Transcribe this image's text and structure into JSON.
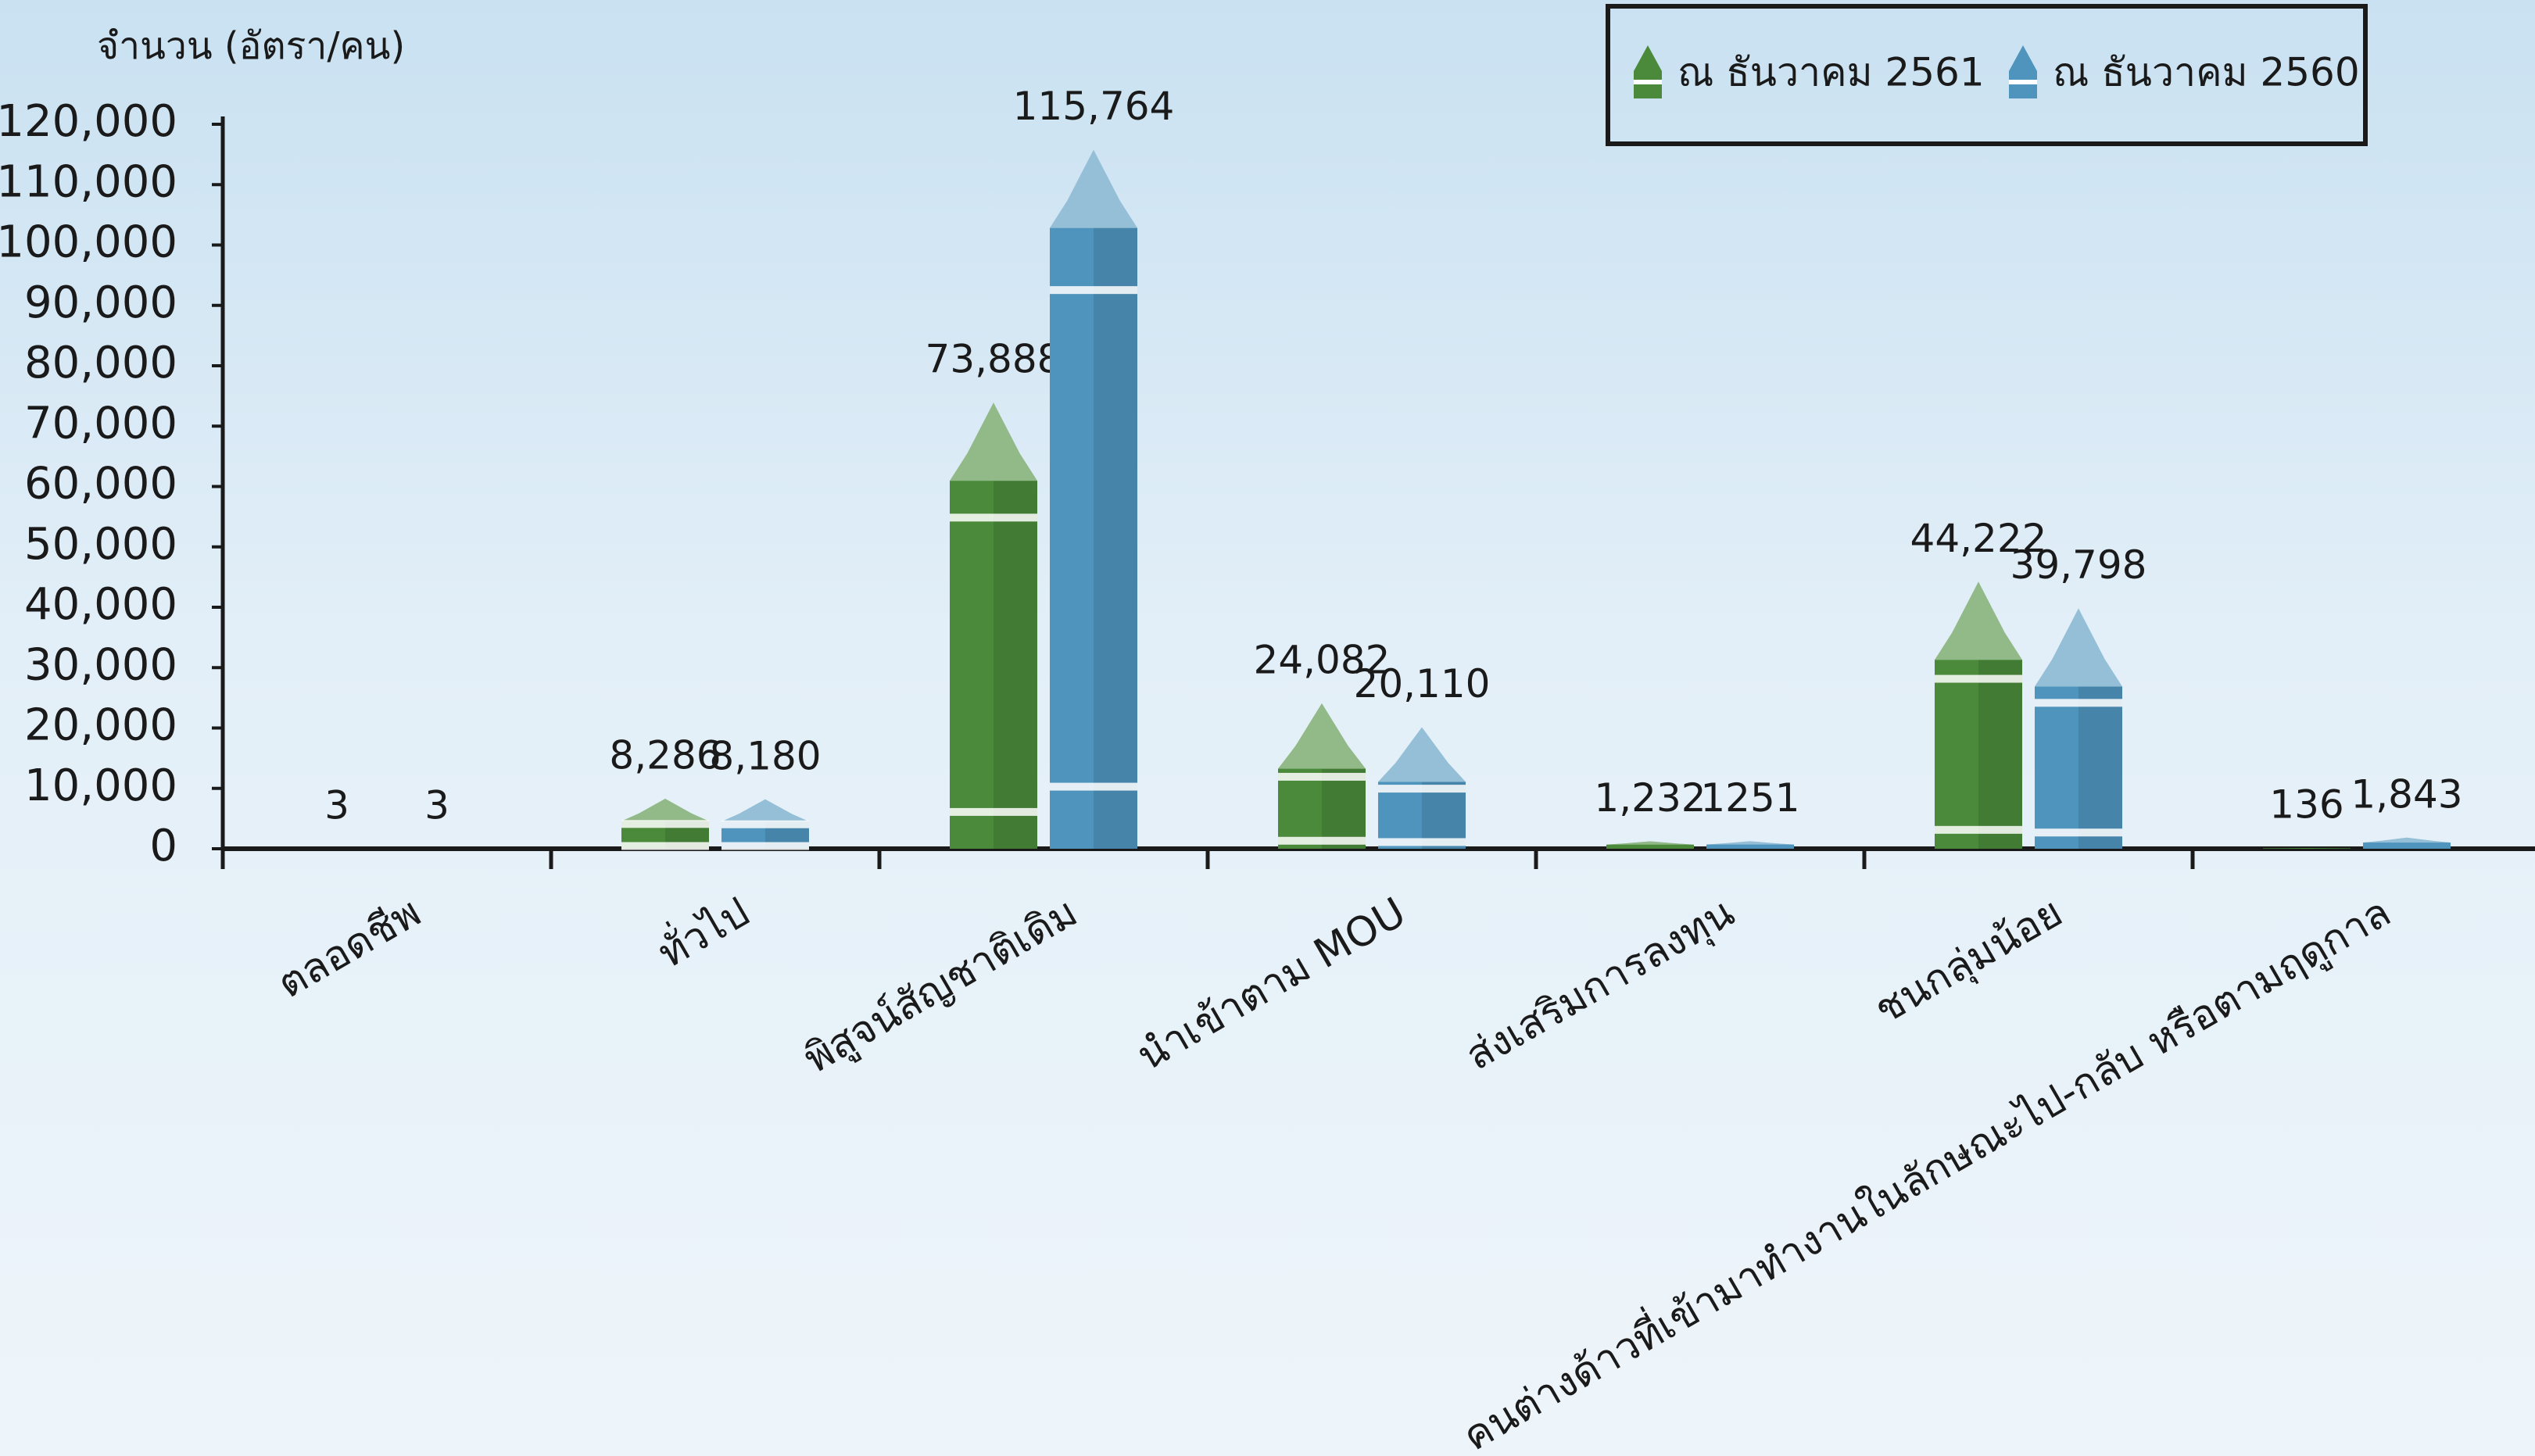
{
  "chart_data": {
    "type": "crayon_bar",
    "y_axis_label": "จำนวน (อัตรา/คน)",
    "categories": [
      "ตลอดชีพ",
      "ทั่วไป",
      "พิสูจน์สัญชาติเดิม",
      "นำเข้าตาม MOU",
      "ส่งเสริมการลงทุน",
      "ชนกลุ่มน้อย",
      "คนต่างด้าวที่เข้ามาทำงานในลักษณะไป-กลับ หรือตามฤดูกาล"
    ],
    "series": [
      {
        "name": "ณ ธันวาคม 2561",
        "color": "#4a8a3a",
        "values": [
          3,
          8286,
          73888,
          24082,
          1232,
          44222,
          136
        ],
        "value_labels": [
          "3",
          "8,286",
          "73,888",
          "24,082",
          "1,232",
          "44,222",
          "136"
        ]
      },
      {
        "name": "ณ ธันวาคม 2560",
        "color": "#4f94bd",
        "values": [
          3,
          8180,
          115764,
          20110,
          1251,
          39798,
          1843
        ],
        "value_labels": [
          "3",
          "8,180",
          "115,764",
          "20,110",
          "1251",
          "39,798",
          "1,843"
        ]
      }
    ],
    "ylim": [
      0,
      120000
    ],
    "yticks": [
      0,
      {
        "value": 10000,
        "label": "10,000"
      },
      {
        "value": 20000,
        "label": "20,000"
      },
      {
        "value": 30000,
        "label": "30,000"
      },
      {
        "value": 40000,
        "label": "40,000"
      },
      {
        "value": 50000,
        "label": "50,000"
      },
      {
        "value": 60000,
        "label": "60,000"
      },
      {
        "value": 70000,
        "label": "70,000"
      },
      {
        "value": 80000,
        "label": "80,000"
      },
      {
        "value": 90000,
        "label": "90,000"
      },
      {
        "value": 100000,
        "label": "100,000"
      },
      {
        "value": 110000,
        "label": "110,000"
      },
      {
        "value": 120000,
        "label": "120,000"
      }
    ],
    "legend": "upper right",
    "grid": false
  }
}
